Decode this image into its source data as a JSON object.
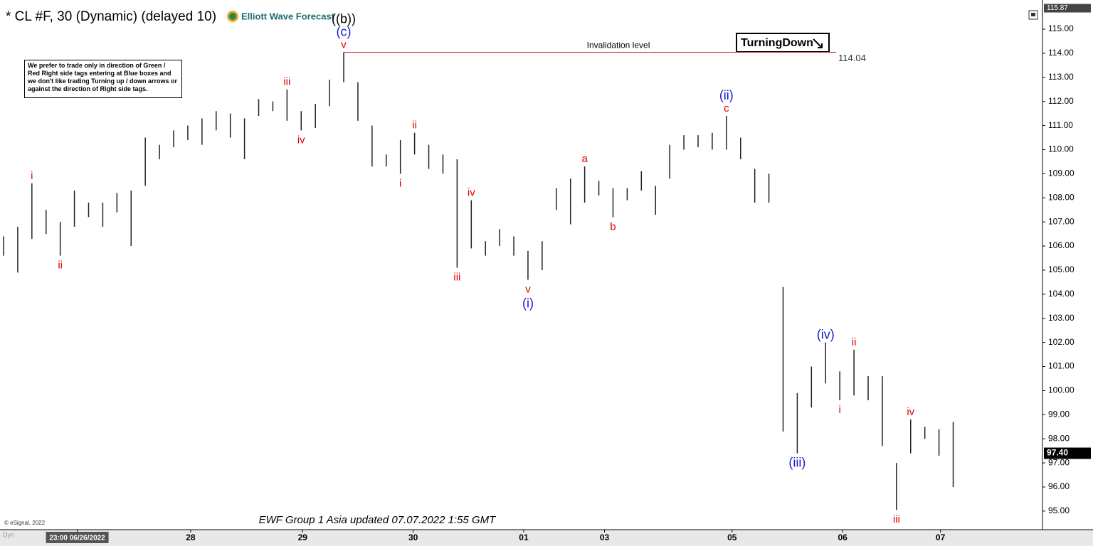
{
  "chart_data": {
    "type": "range",
    "title": "* CL #F, 30 (Dynamic) (delayed 10)",
    "brand": "Elliott Wave Forecast",
    "note": "We prefer to trade only in direction of Green / Red Right side tags entering at Blue boxes and we don't like trading Turning up / down arrows or against the direction of Right side tags.",
    "tag": "TurningDown",
    "footer": "EWF Group 1 Asia updated 07.07.2022 1:55 GMT",
    "copyright": "© eSignal, 2022",
    "mode": "Dyn",
    "bar_color": "#222222",
    "x": [
      0,
      1,
      2,
      3,
      4,
      5,
      6,
      7,
      8,
      9,
      10,
      11,
      12,
      13,
      14,
      15,
      16,
      17,
      18,
      19,
      20,
      21,
      22,
      23,
      24,
      25,
      26,
      27,
      28,
      29,
      30,
      31,
      32,
      33,
      34,
      35,
      36,
      37,
      38,
      39,
      40,
      41,
      42,
      43,
      44,
      45,
      46,
      47,
      48,
      49,
      50,
      51,
      52,
      53,
      54,
      55,
      56,
      57,
      58,
      59,
      60,
      61,
      62,
      63,
      64,
      65,
      66,
      67
    ],
    "high": [
      106.4,
      106.8,
      108.6,
      107.5,
      107.0,
      108.3,
      107.8,
      107.8,
      108.2,
      108.3,
      110.5,
      110.2,
      110.8,
      111.0,
      111.3,
      111.6,
      111.5,
      111.3,
      112.1,
      112.0,
      112.5,
      111.6,
      111.9,
      112.9,
      114.04,
      112.8,
      111.0,
      109.8,
      110.4,
      110.7,
      110.2,
      109.8,
      109.6,
      107.9,
      106.2,
      106.7,
      106.4,
      105.8,
      106.2,
      108.4,
      108.8,
      109.3,
      108.7,
      108.4,
      108.4,
      109.1,
      108.5,
      110.2,
      110.6,
      110.6,
      110.7,
      111.4,
      110.5,
      109.2,
      109.0,
      104.3,
      99.9,
      101.0,
      102.0,
      100.8,
      101.7,
      100.6,
      100.6,
      97.0,
      98.8,
      98.5,
      98.4,
      98.7
    ],
    "low": [
      105.6,
      104.9,
      106.3,
      106.5,
      105.6,
      106.8,
      107.2,
      106.8,
      107.4,
      106.0,
      108.5,
      109.6,
      110.1,
      110.4,
      110.2,
      110.8,
      110.5,
      109.6,
      111.4,
      111.6,
      111.2,
      110.8,
      110.9,
      111.8,
      112.8,
      111.2,
      109.3,
      109.3,
      109.0,
      109.8,
      109.2,
      109.0,
      105.1,
      105.9,
      105.6,
      106.0,
      105.6,
      104.6,
      105.0,
      107.5,
      106.9,
      107.8,
      108.1,
      107.2,
      107.9,
      108.3,
      107.3,
      108.8,
      110.0,
      110.1,
      110.0,
      110.0,
      109.6,
      107.8,
      107.8,
      98.3,
      97.4,
      99.3,
      100.3,
      99.6,
      99.8,
      99.6,
      97.7,
      95.05,
      97.4,
      98.0,
      97.3,
      96.0
    ],
    "xlim": [
      -0.25,
      73.3
    ],
    "xticks": [
      {
        "value": 5.2,
        "label": "23:00 06/26/2022"
      },
      {
        "value": 13.2,
        "label": "28"
      },
      {
        "value": 21.1,
        "label": "29"
      },
      {
        "value": 28.9,
        "label": "30"
      },
      {
        "value": 36.7,
        "label": "01"
      },
      {
        "value": 42.4,
        "label": "03"
      },
      {
        "value": 51.4,
        "label": "05"
      },
      {
        "value": 59.2,
        "label": "06"
      },
      {
        "value": 66.1,
        "label": "07"
      }
    ],
    "ylim": [
      94.23,
      116.21
    ],
    "yticks": [
      {
        "value": 95,
        "label": "95.00"
      },
      {
        "value": 96,
        "label": "96.00"
      },
      {
        "value": 97,
        "label": "97.00"
      },
      {
        "value": 98,
        "label": "98.00"
      },
      {
        "value": 99,
        "label": "99.00"
      },
      {
        "value": 100,
        "label": "100.00"
      },
      {
        "value": 101,
        "label": "101.00"
      },
      {
        "value": 102,
        "label": "102.00"
      },
      {
        "value": 103,
        "label": "103.00"
      },
      {
        "value": 104,
        "label": "104.00"
      },
      {
        "value": 105,
        "label": "105.00"
      },
      {
        "value": 106,
        "label": "106.00"
      },
      {
        "value": 107,
        "label": "107.00"
      },
      {
        "value": 108,
        "label": "108.00"
      },
      {
        "value": 109,
        "label": "109.00"
      },
      {
        "value": 110,
        "label": "110.00"
      },
      {
        "value": 111,
        "label": "111.00"
      },
      {
        "value": 112,
        "label": "112.00"
      },
      {
        "value": 113,
        "label": "113.00"
      },
      {
        "value": 114,
        "label": "114.00"
      },
      {
        "value": 115,
        "label": "115.00"
      }
    ],
    "last_price": {
      "value": 97.4,
      "label": "97.40"
    },
    "top_price": {
      "value": 115.87,
      "label": "115.87"
    },
    "invalidation": {
      "label": "Invalidation level",
      "value": 114.04,
      "bar": 24
    },
    "annotations": [
      {
        "text": "i",
        "bar": 2,
        "at": "high",
        "color": "#e00000"
      },
      {
        "text": "ii",
        "bar": 4,
        "at": "low",
        "color": "#e00000"
      },
      {
        "text": "iii",
        "bar": 20,
        "at": "high",
        "color": "#e00000"
      },
      {
        "text": "iv",
        "bar": 21,
        "at": "low",
        "color": "#e00000"
      },
      {
        "text": "v",
        "bar": 24,
        "at": "high",
        "color": "#e00000"
      },
      {
        "text": "(c)",
        "bar": 24,
        "at": "high",
        "color": "#1a1acc"
      },
      {
        "text": "((b))",
        "bar": 24,
        "at": "high",
        "color": "#000000"
      },
      {
        "text": "i",
        "bar": 28,
        "at": "low",
        "color": "#e00000"
      },
      {
        "text": "ii",
        "bar": 29,
        "at": "high",
        "color": "#e00000"
      },
      {
        "text": "iii",
        "bar": 32,
        "at": "low",
        "color": "#e00000"
      },
      {
        "text": "iv",
        "bar": 33,
        "at": "high",
        "color": "#e00000"
      },
      {
        "text": "v",
        "bar": 37,
        "at": "low",
        "color": "#e00000"
      },
      {
        "text": "(i)",
        "bar": 37,
        "at": "low",
        "color": "#1a1acc"
      },
      {
        "text": "a",
        "bar": 41,
        "at": "high",
        "color": "#e00000"
      },
      {
        "text": "b",
        "bar": 43,
        "at": "low",
        "color": "#e00000"
      },
      {
        "text": "c",
        "bar": 51,
        "at": "high",
        "color": "#e00000"
      },
      {
        "text": "(ii)",
        "bar": 51,
        "at": "high",
        "color": "#1a1acc"
      },
      {
        "text": "(iii)",
        "bar": 56,
        "at": "low",
        "color": "#1a1acc"
      },
      {
        "text": "(iv)",
        "bar": 58,
        "at": "high",
        "color": "#1a1acc"
      },
      {
        "text": "i",
        "bar": 59,
        "at": "low",
        "color": "#e00000"
      },
      {
        "text": "ii",
        "bar": 60,
        "at": "high",
        "color": "#e00000"
      },
      {
        "text": "iii",
        "bar": 63,
        "at": "low",
        "color": "#e00000"
      },
      {
        "text": "iv",
        "bar": 64,
        "at": "high",
        "color": "#e00000"
      }
    ]
  }
}
